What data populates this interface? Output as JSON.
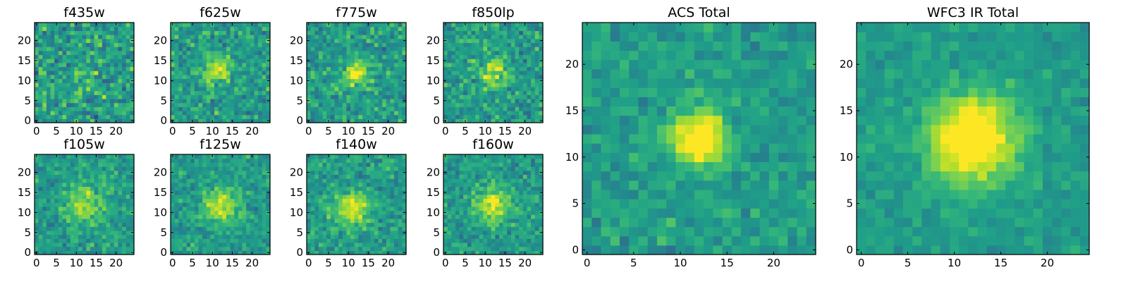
{
  "chart_data": [
    {
      "type": "heatmap",
      "title": "f435w",
      "grid": "25x25",
      "xlim": [
        -0.5,
        24.5
      ],
      "ylim": [
        -0.5,
        24.5
      ],
      "xticks": [
        0,
        5,
        10,
        15,
        20
      ],
      "yticks": [
        0,
        5,
        10,
        15,
        20
      ],
      "peak": [
        12,
        12
      ],
      "peak_strength": 0.08,
      "sigma": 2.6,
      "noise": 0.33,
      "seed": 11
    },
    {
      "type": "heatmap",
      "title": "f625w",
      "grid": "25x25",
      "xlim": [
        -0.5,
        24.5
      ],
      "ylim": [
        -0.5,
        24.5
      ],
      "xticks": [
        0,
        5,
        10,
        15,
        20
      ],
      "yticks": [
        0,
        5,
        10,
        15,
        20
      ],
      "peak": [
        11,
        13
      ],
      "peak_strength": 0.28,
      "sigma": 2.4,
      "noise": 0.26,
      "seed": 23
    },
    {
      "type": "heatmap",
      "title": "f775w",
      "grid": "25x25",
      "xlim": [
        -0.5,
        24.5
      ],
      "ylim": [
        -0.5,
        24.5
      ],
      "xticks": [
        0,
        5,
        10,
        15,
        20
      ],
      "yticks": [
        0,
        5,
        10,
        15,
        20
      ],
      "peak": [
        12,
        12
      ],
      "peak_strength": 0.3,
      "sigma": 2.3,
      "noise": 0.26,
      "seed": 37
    },
    {
      "type": "heatmap",
      "title": "f850lp",
      "grid": "25x25",
      "xlim": [
        -0.5,
        24.5
      ],
      "ylim": [
        -0.5,
        24.5
      ],
      "xticks": [
        0,
        5,
        10,
        15,
        20
      ],
      "yticks": [
        0,
        5,
        10,
        15,
        20
      ],
      "peak": [
        12,
        12
      ],
      "peak_strength": 0.28,
      "sigma": 2.3,
      "noise": 0.26,
      "seed": 41
    },
    {
      "type": "heatmap",
      "title": "f105w",
      "grid": "25x25",
      "xlim": [
        -0.5,
        24.5
      ],
      "ylim": [
        -0.5,
        24.5
      ],
      "xticks": [
        0,
        5,
        10,
        15,
        20
      ],
      "yticks": [
        0,
        5,
        10,
        15,
        20
      ],
      "peak": [
        12,
        12
      ],
      "peak_strength": 0.25,
      "sigma": 3.2,
      "noise": 0.22,
      "seed": 53
    },
    {
      "type": "heatmap",
      "title": "f125w",
      "grid": "25x25",
      "xlim": [
        -0.5,
        24.5
      ],
      "ylim": [
        -0.5,
        24.5
      ],
      "xticks": [
        0,
        5,
        10,
        15,
        20
      ],
      "yticks": [
        0,
        5,
        10,
        15,
        20
      ],
      "peak": [
        12,
        12
      ],
      "peak_strength": 0.3,
      "sigma": 3.0,
      "noise": 0.2,
      "seed": 67
    },
    {
      "type": "heatmap",
      "title": "f140w",
      "grid": "25x25",
      "xlim": [
        -0.5,
        24.5
      ],
      "ylim": [
        -0.5,
        24.5
      ],
      "xticks": [
        0,
        5,
        10,
        15,
        20
      ],
      "yticks": [
        0,
        5,
        10,
        15,
        20
      ],
      "peak": [
        11,
        11
      ],
      "peak_strength": 0.3,
      "sigma": 3.0,
      "noise": 0.22,
      "seed": 71
    },
    {
      "type": "heatmap",
      "title": "f160w",
      "grid": "25x25",
      "xlim": [
        -0.5,
        24.5
      ],
      "ylim": [
        -0.5,
        24.5
      ],
      "xticks": [
        0,
        5,
        10,
        15,
        20
      ],
      "yticks": [
        0,
        5,
        10,
        15,
        20
      ],
      "peak": [
        12,
        12
      ],
      "peak_strength": 0.3,
      "sigma": 3.0,
      "noise": 0.22,
      "seed": 83
    },
    {
      "type": "heatmap",
      "title": "ACS Total",
      "grid": "25x25",
      "xlim": [
        -0.5,
        24.5
      ],
      "ylim": [
        -0.5,
        24.5
      ],
      "xticks": [
        0,
        5,
        10,
        15,
        20
      ],
      "yticks": [
        0,
        5,
        10,
        15,
        20
      ],
      "peak": [
        12,
        12
      ],
      "peak_strength": 0.52,
      "sigma": 1.9,
      "noise": 0.17,
      "seed": 97
    },
    {
      "type": "heatmap",
      "title": "WFC3 IR Total",
      "grid": "25x25",
      "xlim": [
        -0.5,
        24.5
      ],
      "ylim": [
        -0.5,
        24.5
      ],
      "xticks": [
        0,
        5,
        10,
        15,
        20
      ],
      "yticks": [
        0,
        5,
        10,
        15,
        20
      ],
      "peak": [
        12,
        12
      ],
      "peak_strength": 0.48,
      "sigma": 3.3,
      "noise": 0.12,
      "seed": 101
    }
  ]
}
